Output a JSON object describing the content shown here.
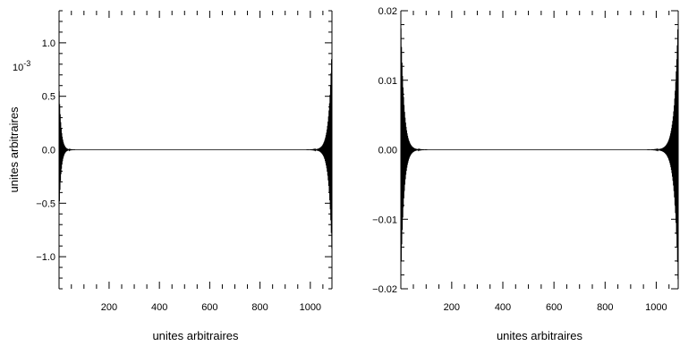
{
  "chart_data": [
    {
      "type": "line",
      "title": "",
      "xlabel": "unites arbitraires",
      "ylabel": "unites arbitraires",
      "y_exponent": "10",
      "y_exponent_power": "-3",
      "xlim": [
        1,
        1086
      ],
      "ylim": [
        -1.3,
        1.3
      ],
      "x_ticks": [
        200,
        400,
        600,
        800,
        1000
      ],
      "x_tick_labels": [
        "200",
        "400",
        "600",
        "800",
        "1000"
      ],
      "y_ticks": [
        -1.0,
        -0.5,
        0.0,
        0.5,
        1.0
      ],
      "y_tick_labels": [
        "−1.0",
        "−0.5",
        "0.0",
        "0.5",
        "1.0"
      ],
      "grid": false,
      "series": [
        {
          "color": "#000000",
          "description_points": [],
          "envelope": {
            "left_peak": 0.62,
            "right_peak": 1.0,
            "left_decay_length": 8,
            "right_decay_length": 12,
            "oscillation_period": 2
          }
        }
      ]
    },
    {
      "type": "line",
      "title": "",
      "xlabel": "unites arbitraires",
      "ylabel": "",
      "xlim": [
        1,
        1086
      ],
      "ylim": [
        -0.02,
        0.02
      ],
      "x_ticks": [
        200,
        400,
        600,
        800,
        1000
      ],
      "x_tick_labels": [
        "200",
        "400",
        "600",
        "800",
        "1000"
      ],
      "y_ticks": [
        -0.02,
        -0.01,
        0.0,
        0.01,
        0.02
      ],
      "y_tick_labels": [
        "−0.02",
        "−0.01",
        "0.00",
        "0.01",
        "0.02"
      ],
      "grid": false,
      "series": [
        {
          "color": "#000000",
          "envelope": {
            "left_peak": 0.019,
            "right_peak": 0.02,
            "left_decay_length": 12,
            "right_decay_length": 14,
            "oscillation_period": 2
          }
        }
      ]
    }
  ]
}
